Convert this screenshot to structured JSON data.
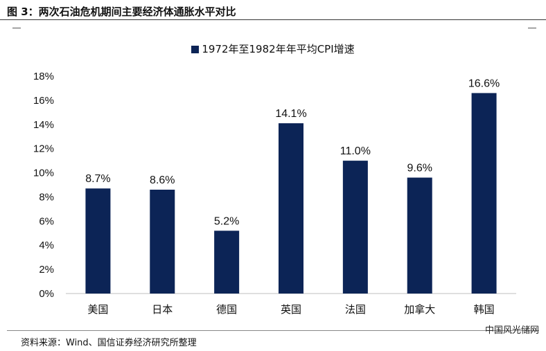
{
  "figure": {
    "title": "图 3：两次石油危机期间主要经济体通胀水平对比",
    "source": "资料来源：Wind、国信证券经济研究所整理",
    "watermark": "中国风光储网"
  },
  "colors": {
    "bar": "#0c2456",
    "axis": "#bfbfbf"
  },
  "chart_data": {
    "type": "bar",
    "categories": [
      "美国",
      "日本",
      "德国",
      "英国",
      "法国",
      "加拿大",
      "韩国"
    ],
    "series": [
      {
        "name": "1972年至1982年年平均CPI增速",
        "values": [
          8.7,
          8.6,
          5.2,
          14.1,
          11.0,
          9.6,
          16.6
        ]
      }
    ],
    "data_labels": [
      "8.7%",
      "8.6%",
      "5.2%",
      "14.1%",
      "11.0%",
      "9.6%",
      "16.6%"
    ],
    "yticks": [
      "0%",
      "2%",
      "4%",
      "6%",
      "8%",
      "10%",
      "12%",
      "14%",
      "16%",
      "18%"
    ],
    "ylim": [
      0,
      18
    ],
    "grid": false,
    "legend_position": "top-center"
  }
}
